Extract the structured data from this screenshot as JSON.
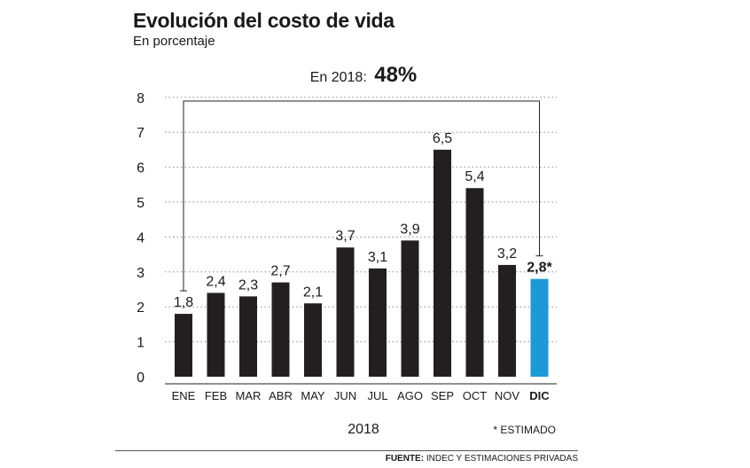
{
  "title": "Evolución del costo de vida",
  "subtitle": "En porcentaje",
  "annotation": {
    "label": "En 2018:",
    "value": "48%"
  },
  "footnote": "* ESTIMADO",
  "source": {
    "label": "FUENTE:",
    "text": "INDEC Y ESTIMACIONES PRIVADAS"
  },
  "colors": {
    "bar": "#231f20",
    "highlight": "#1b9ad6",
    "grid": "#8a8a8a"
  },
  "chart_data": {
    "type": "bar",
    "categories": [
      "ENE",
      "FEB",
      "MAR",
      "ABR",
      "MAY",
      "JUN",
      "JUL",
      "AGO",
      "SEP",
      "OCT",
      "NOV",
      "DIC"
    ],
    "values": [
      1.8,
      2.4,
      2.3,
      2.7,
      2.1,
      3.7,
      3.1,
      3.9,
      6.5,
      5.4,
      3.2,
      2.8
    ],
    "value_labels": [
      "1,8",
      "2,4",
      "2,3",
      "2,7",
      "2,1",
      "3,7",
      "3,1",
      "3,9",
      "6,5",
      "5,4",
      "3,2",
      "2,8*"
    ],
    "highlight_index": 11,
    "title": "Evolución del costo de vida",
    "subtitle": "En porcentaje",
    "xlabel": "2018",
    "ylabel": "",
    "ylim": [
      0,
      8
    ],
    "yticks": [
      "0",
      "1",
      "2",
      "3",
      "4",
      "5",
      "6",
      "7",
      "8"
    ],
    "grid": true
  }
}
